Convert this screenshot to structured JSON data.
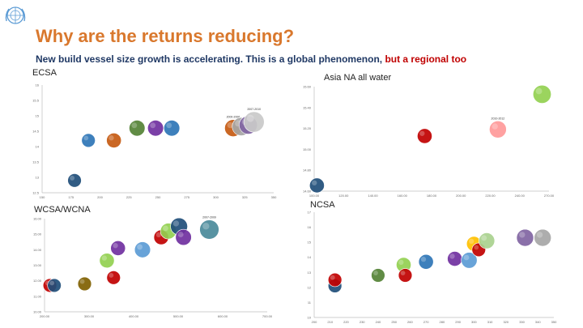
{
  "header": {
    "title": "Why are the returns reducing?",
    "subtitle_main": "New build vessel size growth is accelerating. This is a global phenomenon, ",
    "subtitle_highlight": "but a regional too",
    "colors": {
      "title": "#d9782d",
      "subtitle": "#1f3864",
      "highlight": "#c00000"
    }
  },
  "chart_data": [
    {
      "panel_label": "ECSA",
      "type": "scatter",
      "xlim": [
        150,
        350
      ],
      "ylim": [
        12.5,
        16
      ],
      "x_ticks": [
        "150",
        "175",
        "200",
        "225",
        "250",
        "275",
        "300",
        "325",
        "350"
      ],
      "y_ticks": [
        "16",
        "15.5",
        "15",
        "14.5",
        "14",
        "13.5",
        "13",
        "12.5"
      ],
      "points": [
        {
          "x": 178,
          "y": 12.9,
          "color": "#1f4e79",
          "size": 1.2,
          "label": ""
        },
        {
          "x": 190,
          "y": 14.2,
          "color": "#2e75b6",
          "size": 1.2,
          "label": ""
        },
        {
          "x": 212,
          "y": 14.2,
          "color": "#c55a11",
          "size": 1.3,
          "label": ""
        },
        {
          "x": 232,
          "y": 14.6,
          "color": "#548235",
          "size": 1.4,
          "label": ""
        },
        {
          "x": 248,
          "y": 14.6,
          "color": "#7030a0",
          "size": 1.4,
          "label": ""
        },
        {
          "x": 262,
          "y": 14.6,
          "color": "#2e75b6",
          "size": 1.4,
          "label": ""
        },
        {
          "x": 315,
          "y": 14.6,
          "color": "#c55a11",
          "size": 1.5,
          "label": "2000-2006"
        },
        {
          "x": 322,
          "y": 14.65,
          "color": "#a6a6a6",
          "size": 1.6,
          "label": ""
        },
        {
          "x": 328,
          "y": 14.7,
          "color": "#8064a2",
          "size": 1.6,
          "label": ""
        },
        {
          "x": 333,
          "y": 14.8,
          "color": "#c9c9c9",
          "size": 1.8,
          "label": "2007-2010"
        }
      ]
    },
    {
      "panel_label": "Asia NA all water",
      "type": "scatter",
      "xlim": [
        100,
        270
      ],
      "ylim": [
        14.5,
        15.6
      ],
      "x_ticks": [
        "100.00",
        "120.00",
        "140.00",
        "160.00",
        "180.00",
        "200.00",
        "220.00",
        "240.00",
        "270.00"
      ],
      "y_ticks": [
        "15.60",
        "15.40",
        "15.20",
        "15.00",
        "14.80",
        "14.60"
      ],
      "points": [
        {
          "x": 102,
          "y": 14.56,
          "color": "#1f4e79",
          "size": 1.3,
          "label": ""
        },
        {
          "x": 180,
          "y": 15.08,
          "color": "#c00000",
          "size": 1.3,
          "label": ""
        },
        {
          "x": 233,
          "y": 15.15,
          "color": "#ff9999",
          "size": 1.5,
          "label": "2010-2012"
        },
        {
          "x": 265,
          "y": 15.52,
          "color": "#92d050",
          "size": 1.6,
          "label": ""
        }
      ]
    },
    {
      "panel_label": "WCSA/WCNA",
      "type": "scatter",
      "xlim": [
        200,
        700
      ],
      "ylim": [
        10,
        16
      ],
      "x_ticks": [
        "200.00",
        "300.00",
        "400.00",
        "500.00",
        "600.00",
        "700.00"
      ],
      "y_ticks": [
        "16.00",
        "15.00",
        "14.00",
        "13.00",
        "12.00",
        "11.00",
        "10.00"
      ],
      "points": [
        {
          "x": 212,
          "y": 11.7,
          "color": "#c00000",
          "size": 1.2,
          "label": ""
        },
        {
          "x": 222,
          "y": 11.7,
          "color": "#1f4e79",
          "size": 1.2,
          "label": ""
        },
        {
          "x": 290,
          "y": 11.8,
          "color": "#7f6000",
          "size": 1.2,
          "label": ""
        },
        {
          "x": 340,
          "y": 13.3,
          "color": "#92d050",
          "size": 1.3,
          "label": ""
        },
        {
          "x": 355,
          "y": 12.2,
          "color": "#c00000",
          "size": 1.2,
          "label": ""
        },
        {
          "x": 365,
          "y": 14.1,
          "color": "#7030a0",
          "size": 1.3,
          "label": ""
        },
        {
          "x": 420,
          "y": 14.0,
          "color": "#5b9bd5",
          "size": 1.4,
          "label": ""
        },
        {
          "x": 462,
          "y": 14.8,
          "color": "#c00000",
          "size": 1.3,
          "label": ""
        },
        {
          "x": 478,
          "y": 15.2,
          "color": "#92d050",
          "size": 1.4,
          "label": ""
        },
        {
          "x": 502,
          "y": 15.5,
          "color": "#1f4e79",
          "size": 1.5,
          "label": ""
        },
        {
          "x": 512,
          "y": 14.8,
          "color": "#7030a0",
          "size": 1.4,
          "label": ""
        },
        {
          "x": 570,
          "y": 15.3,
          "color": "#4a8a9a",
          "size": 1.7,
          "label": "2007-2009"
        }
      ]
    },
    {
      "panel_label": "NCSA",
      "type": "scatter",
      "xlim": [
        200,
        350
      ],
      "ylim": [
        10,
        17
      ],
      "x_ticks": [
        "200",
        "210",
        "220",
        "230",
        "240",
        "250",
        "260",
        "270",
        "280",
        "290",
        "300",
        "310",
        "320",
        "330",
        "340",
        "350"
      ],
      "y_ticks": [
        "17",
        "16",
        "15",
        "14",
        "13",
        "12",
        "11",
        "10"
      ],
      "points": [
        {
          "x": 213,
          "y": 12.1,
          "color": "#1f4e79",
          "size": 1.2,
          "label": ""
        },
        {
          "x": 213,
          "y": 12.5,
          "color": "#c00000",
          "size": 1.2,
          "label": ""
        },
        {
          "x": 240,
          "y": 12.8,
          "color": "#548235",
          "size": 1.2,
          "label": ""
        },
        {
          "x": 256,
          "y": 13.5,
          "color": "#92d050",
          "size": 1.3,
          "label": ""
        },
        {
          "x": 257,
          "y": 12.8,
          "color": "#c00000",
          "size": 1.2,
          "label": ""
        },
        {
          "x": 270,
          "y": 13.7,
          "color": "#2e75b6",
          "size": 1.3,
          "label": ""
        },
        {
          "x": 288,
          "y": 13.9,
          "color": "#7030a0",
          "size": 1.3,
          "label": ""
        },
        {
          "x": 297,
          "y": 13.8,
          "color": "#5b9bd5",
          "size": 1.4,
          "label": ""
        },
        {
          "x": 300,
          "y": 14.9,
          "color": "#ffc000",
          "size": 1.3,
          "label": ""
        },
        {
          "x": 303,
          "y": 14.5,
          "color": "#c00000",
          "size": 1.2,
          "label": ""
        },
        {
          "x": 308,
          "y": 15.1,
          "color": "#a9d18e",
          "size": 1.4,
          "label": ""
        },
        {
          "x": 332,
          "y": 15.3,
          "color": "#8064a2",
          "size": 1.5,
          "label": ""
        },
        {
          "x": 343,
          "y": 15.3,
          "color": "#a6a6a6",
          "size": 1.5,
          "label": ""
        }
      ]
    }
  ]
}
